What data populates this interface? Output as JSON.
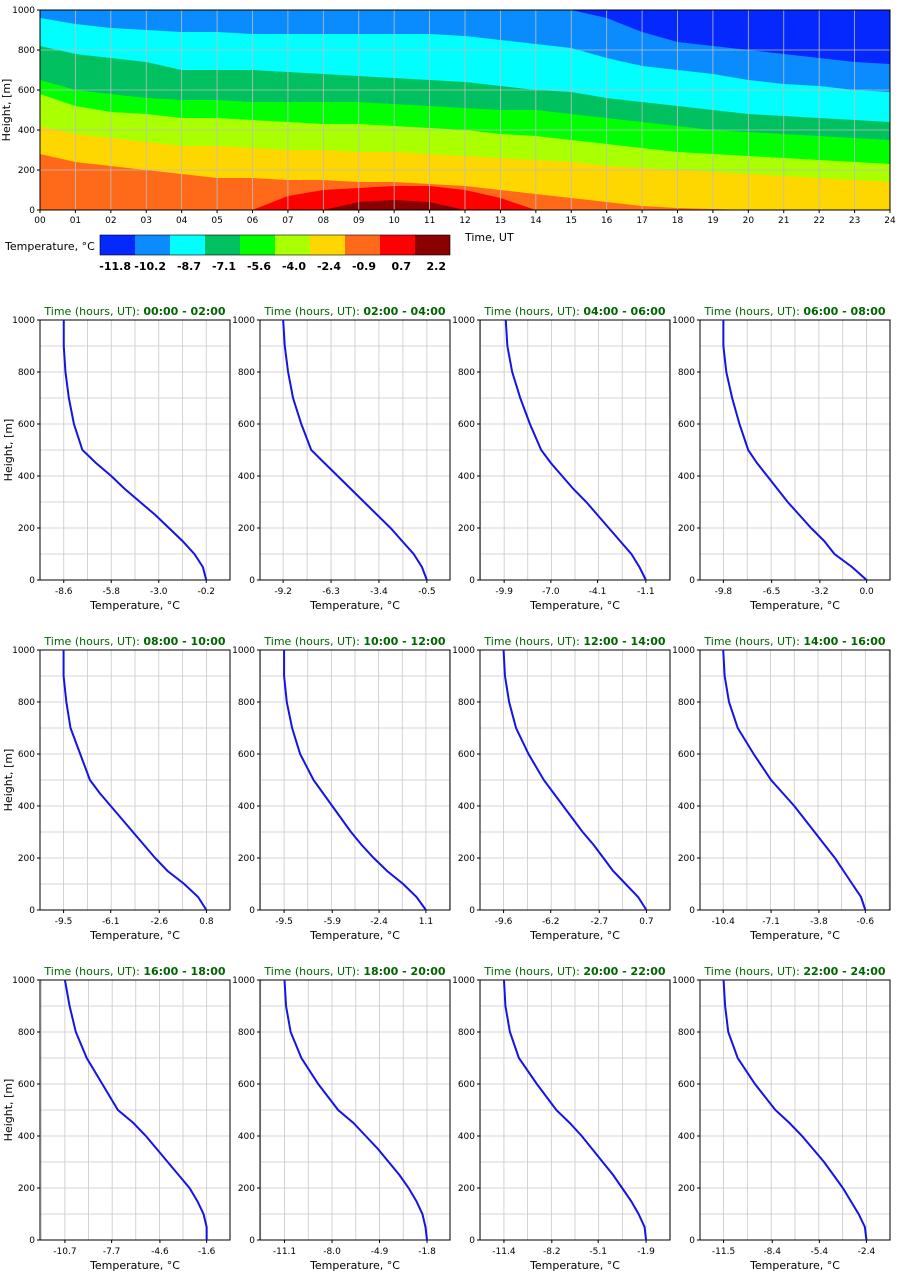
{
  "chart_data": [
    {
      "type": "heatmap",
      "xlabel": "Time, UT",
      "ylabel": "Height, [m]",
      "x_ticks": [
        "00",
        "01",
        "02",
        "03",
        "04",
        "05",
        "06",
        "07",
        "08",
        "09",
        "10",
        "11",
        "12",
        "13",
        "14",
        "15",
        "16",
        "17",
        "18",
        "19",
        "20",
        "21",
        "22",
        "23",
        "24"
      ],
      "y_ticks": [
        "0",
        "200",
        "400",
        "600",
        "800",
        "1000"
      ],
      "xlim": [
        0,
        24
      ],
      "ylim": [
        0,
        1000
      ],
      "grid": true,
      "colorbar": {
        "label": "Temperature, °C",
        "ticks": [
          "-11.8",
          "-10.2",
          "-8.7",
          "-7.1",
          "-5.6",
          "-4.0",
          "-2.4",
          "-0.9",
          "0.7",
          "2.2"
        ],
        "colors": [
          "#0528ff",
          "#0a8cff",
          "#00ffff",
          "#00c060",
          "#00ff00",
          "#aaff00",
          "#ffd700",
          "#ff6a1a",
          "#ff0000",
          "#8b0000"
        ]
      },
      "isotherm_heights": {
        "hours": [
          0,
          1,
          2,
          3,
          4,
          5,
          6,
          7,
          8,
          9,
          10,
          11,
          12,
          13,
          14,
          15,
          16,
          17,
          18,
          19,
          20,
          21,
          22,
          23,
          24
        ],
        "-10.2": [
          1000,
          1000,
          1000,
          1000,
          1000,
          1000,
          1000,
          1000,
          1000,
          1000,
          1000,
          1000,
          1000,
          1000,
          1000,
          1000,
          960,
          890,
          840,
          820,
          800,
          780,
          760,
          740,
          730
        ],
        "-8.7": [
          960,
          930,
          910,
          900,
          890,
          890,
          880,
          880,
          880,
          880,
          880,
          880,
          870,
          850,
          830,
          810,
          760,
          720,
          700,
          680,
          650,
          630,
          620,
          600,
          590
        ],
        "-7.1": [
          820,
          780,
          760,
          740,
          700,
          700,
          700,
          690,
          680,
          670,
          660,
          650,
          640,
          620,
          600,
          590,
          560,
          540,
          520,
          500,
          480,
          470,
          460,
          450,
          440
        ],
        "-5.6": [
          650,
          600,
          580,
          560,
          550,
          550,
          540,
          540,
          540,
          540,
          530,
          520,
          510,
          500,
          500,
          480,
          460,
          440,
          420,
          400,
          390,
          380,
          370,
          360,
          350
        ],
        "-4.0": [
          580,
          520,
          490,
          480,
          460,
          460,
          450,
          440,
          430,
          430,
          420,
          410,
          400,
          380,
          370,
          350,
          330,
          310,
          290,
          280,
          270,
          260,
          250,
          240,
          230
        ],
        "-2.4": [
          420,
          380,
          360,
          340,
          320,
          320,
          310,
          300,
          300,
          290,
          290,
          280,
          270,
          260,
          250,
          240,
          220,
          210,
          200,
          190,
          180,
          170,
          160,
          150,
          140
        ],
        "-0.9": [
          280,
          240,
          220,
          200,
          180,
          160,
          160,
          150,
          150,
          140,
          140,
          130,
          120,
          100,
          80,
          60,
          40,
          20,
          10,
          5,
          0,
          0,
          0,
          0,
          0
        ],
        "0.7": [
          0,
          0,
          0,
          0,
          0,
          0,
          0,
          70,
          100,
          110,
          120,
          120,
          100,
          60,
          0,
          0,
          0,
          0,
          0,
          0,
          0,
          0,
          0,
          0,
          0
        ],
        "2.2": [
          0,
          0,
          0,
          0,
          0,
          0,
          0,
          0,
          0,
          40,
          50,
          40,
          0,
          0,
          0,
          0,
          0,
          0,
          0,
          0,
          0,
          0,
          0,
          0,
          0
        ]
      }
    },
    {
      "type": "line",
      "panels": [
        {
          "title_prefix": "Time (hours, UT):",
          "title_range": "00:00 - 02:00",
          "xticks": [
            "-8.6",
            "-5.8",
            "-3.0",
            "-0.2"
          ],
          "xlim": [
            -10.0,
            1.2
          ],
          "temps": [
            -0.2,
            -0.4,
            -0.9,
            -1.6,
            -2.4,
            -3.2,
            -4.1,
            -5.0,
            -5.8,
            -6.7,
            -7.5,
            -8.0,
            -8.3,
            -8.5,
            -8.6,
            -8.6
          ],
          "heights": [
            0,
            50,
            100,
            150,
            200,
            250,
            300,
            350,
            400,
            450,
            500,
            600,
            700,
            800,
            900,
            1000
          ]
        },
        {
          "title_prefix": "Time (hours, UT):",
          "title_range": "02:00 - 04:00",
          "xticks": [
            "-9.2",
            "-6.3",
            "-3.4",
            "-0.5"
          ],
          "xlim": [
            -10.6,
            0.9
          ],
          "temps": [
            -0.5,
            -0.8,
            -1.3,
            -2.0,
            -2.7,
            -3.5,
            -4.3,
            -5.1,
            -5.9,
            -6.7,
            -7.5,
            -8.1,
            -8.6,
            -8.9,
            -9.1,
            -9.2
          ],
          "heights": [
            0,
            50,
            100,
            150,
            200,
            250,
            300,
            350,
            400,
            450,
            500,
            600,
            700,
            800,
            900,
            1000
          ]
        },
        {
          "title_prefix": "Time (hours, UT):",
          "title_range": "04:00 - 06:00",
          "xticks": [
            "-9.9",
            "-7.0",
            "-4.1",
            "-1.1"
          ],
          "xlim": [
            -11.4,
            0.4
          ],
          "temps": [
            -1.1,
            -1.5,
            -2.0,
            -2.7,
            -3.4,
            -4.1,
            -4.8,
            -5.6,
            -6.3,
            -7.0,
            -7.6,
            -8.3,
            -8.9,
            -9.4,
            -9.7,
            -9.8
          ],
          "heights": [
            0,
            50,
            100,
            150,
            200,
            250,
            300,
            350,
            400,
            450,
            500,
            600,
            700,
            800,
            900,
            1000
          ]
        },
        {
          "title_prefix": "Time (hours, UT):",
          "title_range": "06:00 - 08:00",
          "xticks": [
            "-9.8",
            "-6.5",
            "-3.2",
            "0.0"
          ],
          "xlim": [
            -11.4,
            1.6
          ],
          "temps": [
            0.0,
            -1.0,
            -2.2,
            -2.9,
            -3.8,
            -4.6,
            -5.4,
            -6.1,
            -6.8,
            -7.5,
            -8.1,
            -8.7,
            -9.2,
            -9.6,
            -9.8,
            -9.8
          ],
          "heights": [
            0,
            50,
            100,
            150,
            200,
            250,
            300,
            350,
            400,
            450,
            500,
            600,
            700,
            800,
            900,
            1000
          ]
        },
        {
          "title_prefix": "Time (hours, UT):",
          "title_range": "08:00 - 10:00",
          "xticks": [
            "-9.5",
            "-6.1",
            "-2.6",
            "0.8"
          ],
          "xlim": [
            -11.2,
            2.5
          ],
          "temps": [
            0.8,
            0.2,
            -0.8,
            -2.0,
            -2.9,
            -3.7,
            -4.5,
            -5.3,
            -6.1,
            -6.9,
            -7.6,
            -8.3,
            -9.0,
            -9.3,
            -9.5,
            -9.5
          ],
          "heights": [
            0,
            50,
            100,
            150,
            200,
            250,
            300,
            350,
            400,
            450,
            500,
            600,
            700,
            800,
            900,
            1000
          ]
        },
        {
          "title_prefix": "Time (hours, UT):",
          "title_range": "10:00 - 12:00",
          "xticks": [
            "-9.5",
            "-5.9",
            "-2.4",
            "1.1"
          ],
          "xlim": [
            -11.3,
            2.9
          ],
          "temps": [
            1.1,
            0.4,
            -0.6,
            -1.8,
            -2.8,
            -3.7,
            -4.5,
            -5.2,
            -5.9,
            -6.6,
            -7.3,
            -8.3,
            -8.9,
            -9.3,
            -9.5,
            -9.5
          ],
          "heights": [
            0,
            50,
            100,
            150,
            200,
            250,
            300,
            350,
            400,
            450,
            500,
            600,
            700,
            800,
            900,
            1000
          ]
        },
        {
          "title_prefix": "Time (hours, UT):",
          "title_range": "12:00 - 14:00",
          "xticks": [
            "-9.6",
            "-6.2",
            "-2.7",
            "0.7"
          ],
          "xlim": [
            -11.3,
            2.4
          ],
          "temps": [
            0.7,
            0.1,
            -0.8,
            -1.7,
            -2.4,
            -3.1,
            -3.9,
            -4.6,
            -5.3,
            -6.0,
            -6.7,
            -7.8,
            -8.7,
            -9.2,
            -9.5,
            -9.6
          ],
          "heights": [
            0,
            50,
            100,
            150,
            200,
            250,
            300,
            350,
            400,
            450,
            500,
            600,
            700,
            800,
            900,
            1000
          ]
        },
        {
          "title_prefix": "Time (hours, UT):",
          "title_range": "14:00 - 16:00",
          "xticks": [
            "-10.4",
            "-7.1",
            "-3.8",
            "-0.6"
          ],
          "xlim": [
            -12.0,
            1.1
          ],
          "temps": [
            -0.6,
            -0.9,
            -1.5,
            -2.1,
            -2.7,
            -3.4,
            -4.1,
            -4.8,
            -5.5,
            -6.3,
            -7.1,
            -8.3,
            -9.4,
            -10.0,
            -10.3,
            -10.4
          ],
          "heights": [
            0,
            50,
            100,
            150,
            200,
            250,
            300,
            350,
            400,
            450,
            500,
            600,
            700,
            800,
            900,
            1000
          ]
        },
        {
          "title_prefix": "Time (hours, UT):",
          "title_range": "16:00 - 18:00",
          "xticks": [
            "-10.7",
            "-7.7",
            "-4.6",
            "-1.6"
          ],
          "xlim": [
            -12.3,
            -0.1
          ],
          "temps": [
            -1.6,
            -1.6,
            -1.8,
            -2.2,
            -2.7,
            -3.4,
            -4.1,
            -4.8,
            -5.5,
            -6.3,
            -7.3,
            -8.3,
            -9.3,
            -10.0,
            -10.4,
            -10.7
          ],
          "heights": [
            0,
            50,
            100,
            150,
            200,
            250,
            300,
            350,
            400,
            450,
            500,
            600,
            700,
            800,
            900,
            1000
          ]
        },
        {
          "title_prefix": "Time (hours, UT):",
          "title_range": "18:00 - 20:00",
          "xticks": [
            "-11.1",
            "-8.0",
            "-4.9",
            "-1.8"
          ],
          "xlim": [
            -12.7,
            -0.3
          ],
          "temps": [
            -1.8,
            -1.9,
            -2.1,
            -2.5,
            -3.0,
            -3.6,
            -4.3,
            -5.0,
            -5.8,
            -6.6,
            -7.6,
            -8.9,
            -10.0,
            -10.7,
            -11.0,
            -11.1
          ],
          "heights": [
            0,
            50,
            100,
            150,
            200,
            250,
            300,
            350,
            400,
            450,
            500,
            600,
            700,
            800,
            900,
            1000
          ]
        },
        {
          "title_prefix": "Time (hours, UT):",
          "title_range": "20:00 - 22:00",
          "xticks": [
            "-11.4",
            "-8.2",
            "-5.1",
            "-1.9"
          ],
          "xlim": [
            -13.0,
            -0.3
          ],
          "temps": [
            -1.9,
            -2.0,
            -2.4,
            -2.9,
            -3.5,
            -4.1,
            -4.8,
            -5.5,
            -6.2,
            -7.0,
            -7.9,
            -9.2,
            -10.4,
            -11.0,
            -11.3,
            -11.4
          ],
          "heights": [
            0,
            50,
            100,
            150,
            200,
            250,
            300,
            350,
            400,
            450,
            500,
            600,
            700,
            800,
            900,
            1000
          ]
        },
        {
          "title_prefix": "Time (hours, UT):",
          "title_range": "22:00 - 24:00",
          "xticks": [
            "-11.5",
            "-8.4",
            "-5.4",
            "-2.4"
          ],
          "xlim": [
            -13.0,
            -0.9
          ],
          "temps": [
            -2.4,
            -2.5,
            -2.9,
            -3.4,
            -3.9,
            -4.5,
            -5.1,
            -5.8,
            -6.5,
            -7.3,
            -8.2,
            -9.5,
            -10.6,
            -11.2,
            -11.4,
            -11.5
          ],
          "heights": [
            0,
            50,
            100,
            150,
            200,
            250,
            300,
            350,
            400,
            450,
            500,
            600,
            700,
            800,
            900,
            1000
          ]
        }
      ],
      "y_ticks": [
        "0",
        "200",
        "400",
        "600",
        "800",
        "1000"
      ],
      "ylim": [
        0,
        1000
      ],
      "xlabel": "Temperature, °C",
      "ylabel": "Height, [m]",
      "line_color": "#1414e6",
      "grid": true
    }
  ]
}
